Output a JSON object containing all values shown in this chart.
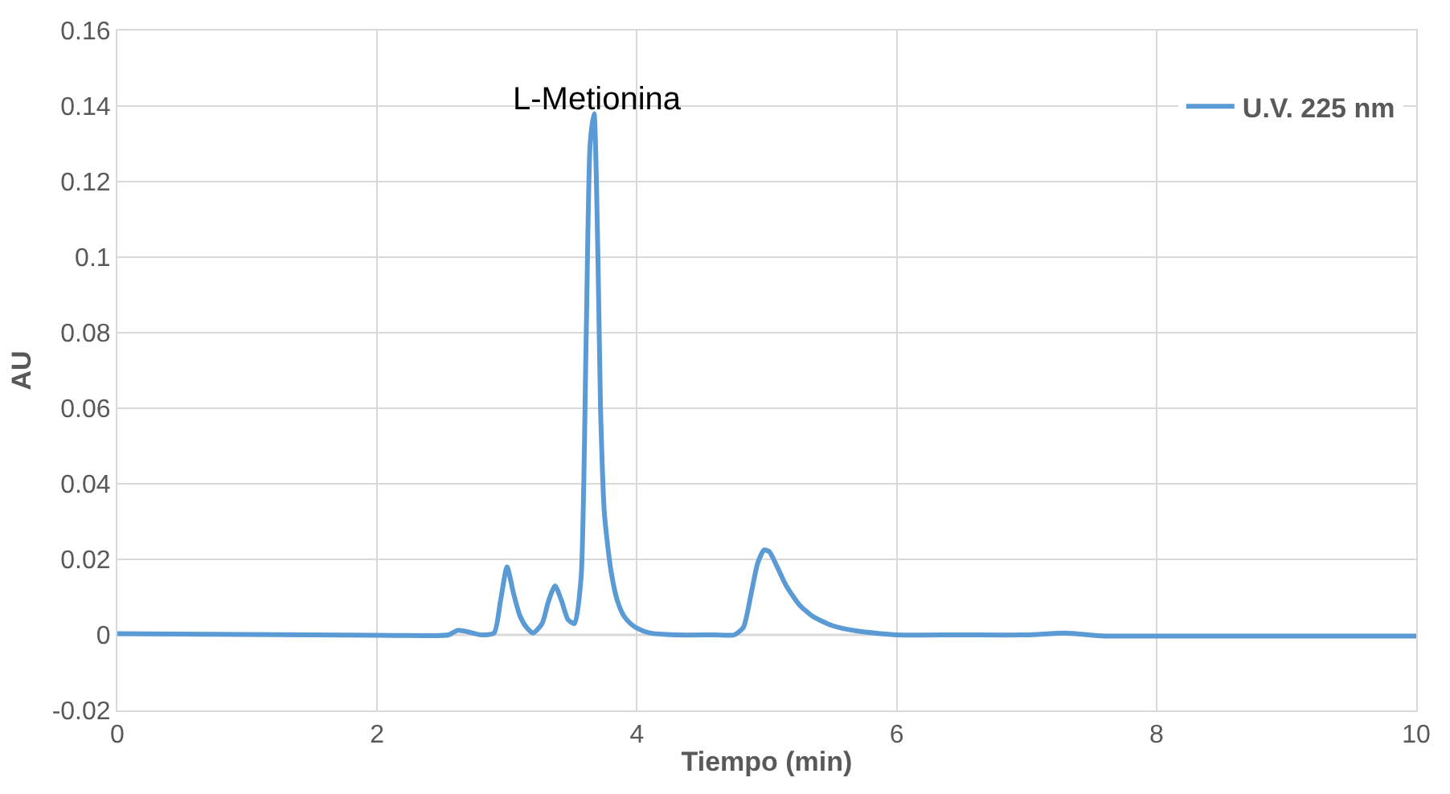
{
  "chart_data": {
    "type": "line",
    "xlabel": "Tiempo (min)",
    "ylabel": "AU",
    "xlim": [
      0,
      10
    ],
    "ylim": [
      -0.02,
      0.16
    ],
    "xticks": [
      0,
      2,
      4,
      6,
      8,
      10
    ],
    "yticks": [
      -0.02,
      0,
      0.02,
      0.04,
      0.06,
      0.08,
      0.1,
      0.12,
      0.14,
      0.16
    ],
    "grid": true,
    "legend": "top right",
    "marker": "none",
    "line_style": "solid",
    "annotations": [
      "L-Metionina"
    ],
    "series": [
      {
        "name": "U.V. 225 nm",
        "color": "#5b9bd5",
        "x": [
          0,
          0.5,
          1,
          1.5,
          2,
          2.4,
          2.55,
          2.62,
          2.7,
          2.8,
          2.9,
          2.95,
          3.0,
          3.05,
          3.1,
          3.15,
          3.2,
          3.27,
          3.32,
          3.37,
          3.42,
          3.47,
          3.52,
          3.57,
          3.61,
          3.64,
          3.67,
          3.7,
          3.72,
          3.75,
          3.8,
          3.85,
          3.9,
          3.95,
          4.0,
          4.1,
          4.3,
          4.6,
          4.75,
          4.82,
          4.88,
          4.93,
          4.98,
          5.02,
          5.08,
          5.15,
          5.25,
          5.35,
          5.5,
          5.7,
          6.0,
          6.5,
          7.0,
          7.3,
          7.6,
          8,
          9,
          10
        ],
        "values": [
          0.0003,
          0.0002,
          0.0001,
          0,
          -0.0001,
          -0.0002,
          0,
          0.0012,
          0.0008,
          0,
          0.0005,
          0.009,
          0.018,
          0.011,
          0.005,
          0.002,
          0.0005,
          0.003,
          0.009,
          0.013,
          0.009,
          0.004,
          0.003,
          0.015,
          0.08,
          0.13,
          0.138,
          0.1,
          0.06,
          0.032,
          0.017,
          0.009,
          0.005,
          0.003,
          0.0018,
          0.0005,
          0,
          0,
          0,
          0.002,
          0.011,
          0.019,
          0.0225,
          0.022,
          0.018,
          0.013,
          0.008,
          0.005,
          0.0025,
          0.001,
          0,
          0,
          0,
          0.0005,
          -0.0003,
          -0.0003,
          -0.0003,
          -0.0003
        ]
      }
    ]
  }
}
